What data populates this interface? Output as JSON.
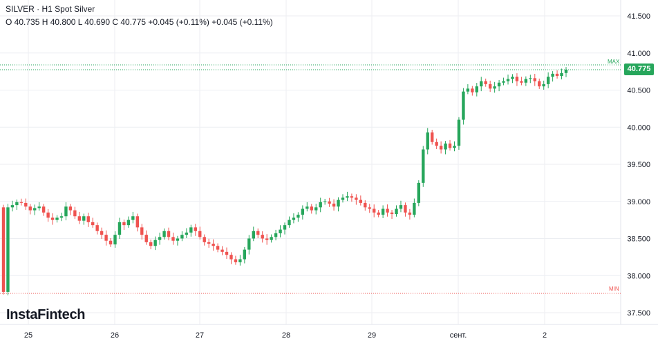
{
  "header": {
    "symbol": "SILVER",
    "separator": "·",
    "title": "H1 Spot Silver",
    "ohlc": "O 40.735 H 40.800 L 40.690 C 40.775 +0.045 (+0.11%) +0.045 (+0.11%)"
  },
  "brand": "InstaFintech",
  "current_price": "40.775",
  "max_label": "MAX",
  "min_label": "MIN",
  "colors": {
    "up": "#26a65b",
    "down": "#ef5350",
    "grid": "#eceef2",
    "axis_text": "#131722"
  },
  "chart_data": {
    "type": "candlestick",
    "title": "H1 Spot Silver",
    "y_range": [
      37.3,
      41.7
    ],
    "y_ticks": [
      "37.500",
      "38.000",
      "38.500",
      "39.000",
      "39.500",
      "40.000",
      "40.500",
      "41.000",
      "41.500"
    ],
    "x_ticks": [
      "25",
      "26",
      "27",
      "28",
      "29",
      "сент.",
      "2"
    ],
    "max_line": 40.84,
    "min_line": 37.76,
    "last_price": 40.775,
    "close": [
      37.78,
      38.92,
      38.95,
      38.99,
      38.98,
      38.93,
      38.88,
      38.91,
      38.93,
      38.85,
      38.78,
      38.75,
      38.78,
      38.8,
      38.93,
      38.88,
      38.8,
      38.74,
      38.8,
      38.72,
      38.68,
      38.6,
      38.55,
      38.47,
      38.42,
      38.55,
      38.72,
      38.68,
      38.75,
      38.8,
      38.65,
      38.55,
      38.45,
      38.4,
      38.48,
      38.52,
      38.6,
      38.52,
      38.47,
      38.5,
      38.55,
      38.58,
      38.65,
      38.6,
      38.52,
      38.45,
      38.43,
      38.4,
      38.35,
      38.32,
      38.28,
      38.22,
      38.18,
      38.22,
      38.35,
      38.5,
      38.6,
      38.55,
      38.5,
      38.48,
      38.52,
      38.57,
      38.62,
      38.68,
      38.75,
      38.78,
      38.82,
      38.9,
      38.93,
      38.88,
      38.92,
      38.99,
      39.0,
      38.97,
      38.93,
      39.02,
      39.05,
      39.07,
      39.05,
      39.02,
      38.98,
      38.92,
      38.9,
      38.85,
      38.82,
      38.9,
      38.85,
      38.83,
      38.9,
      38.95,
      38.85,
      38.82,
      38.98,
      39.25,
      39.7,
      39.93,
      39.8,
      39.75,
      39.7,
      39.78,
      39.72,
      39.75,
      40.1,
      40.48,
      40.52,
      40.47,
      40.55,
      40.62,
      40.58,
      40.52,
      40.55,
      40.6,
      40.62,
      40.65,
      40.68,
      40.62,
      40.6,
      40.65,
      40.66,
      40.62,
      40.55,
      40.58,
      40.68,
      40.72,
      40.69,
      40.73,
      40.775
    ]
  }
}
